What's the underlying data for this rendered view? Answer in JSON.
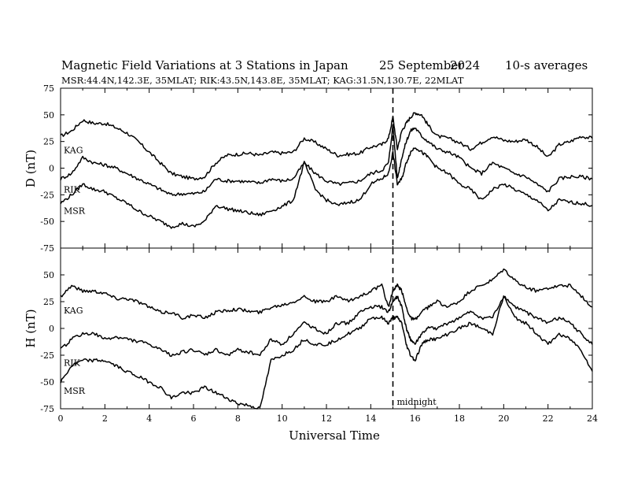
{
  "header": {
    "title": "Magnetic Field Variations at 3 Stations in Japan",
    "date": "25 September",
    "year": "2024",
    "averaging": "10-s averages",
    "stations_line": "MSR:44.4N,142.3E, 35MLAT;  RIK:43.5N,143.8E, 35MLAT;  KAG:31.5N,130.7E, 22MLAT"
  },
  "chart_data": [
    {
      "type": "line",
      "panel": "D",
      "ylabel": "D (nT)",
      "xlabel": "",
      "ylim": [
        -75,
        75
      ],
      "yticks": [
        -75,
        -50,
        -25,
        0,
        25,
        50,
        75
      ],
      "xlim": [
        0,
        24
      ],
      "x": [
        0,
        0.5,
        1,
        1.5,
        2,
        2.5,
        3,
        3.5,
        4,
        4.5,
        5,
        5.5,
        6,
        6.5,
        7,
        7.5,
        8,
        8.5,
        9,
        9.5,
        10,
        10.5,
        11,
        11.5,
        12,
        12.5,
        13,
        13.5,
        14,
        14.5,
        14.8,
        15,
        15.2,
        15.4,
        15.6,
        15.8,
        16,
        16.3,
        16.6,
        17,
        17.5,
        18,
        18.5,
        19,
        19.5,
        20,
        20.5,
        21,
        21.5,
        22,
        22.5,
        23,
        23.5,
        24
      ],
      "series": [
        {
          "name": "KAG",
          "label_y": 17,
          "values": [
            30,
            35,
            45,
            42,
            42,
            38,
            33,
            25,
            15,
            5,
            -5,
            -8,
            -10,
            -8,
            5,
            12,
            13,
            14,
            12,
            15,
            14,
            15,
            28,
            24,
            18,
            12,
            13,
            14,
            20,
            22,
            28,
            48,
            18,
            35,
            42,
            48,
            52,
            50,
            40,
            30,
            28,
            24,
            18,
            24,
            30,
            26,
            25,
            27,
            20,
            10,
            22,
            25,
            30,
            28
          ]
        },
        {
          "name": "RIK",
          "label_y": -20,
          "values": [
            -10,
            -5,
            10,
            5,
            3,
            0,
            -5,
            -10,
            -15,
            -20,
            -25,
            -24,
            -24,
            -22,
            -10,
            -12,
            -12,
            -13,
            -14,
            -10,
            -12,
            -10,
            5,
            -5,
            -12,
            -15,
            -14,
            -12,
            -5,
            -2,
            5,
            40,
            -10,
            10,
            25,
            35,
            38,
            30,
            25,
            18,
            15,
            10,
            0,
            -5,
            5,
            0,
            -5,
            -8,
            -15,
            -22,
            -10,
            -8,
            -8,
            -10
          ]
        },
        {
          "name": "MSR",
          "label_y": -40,
          "values": [
            -33,
            -25,
            -15,
            -20,
            -22,
            -28,
            -33,
            -40,
            -45,
            -50,
            -55,
            -52,
            -55,
            -50,
            -35,
            -38,
            -40,
            -42,
            -44,
            -40,
            -36,
            -30,
            5,
            -20,
            -30,
            -35,
            -32,
            -30,
            -15,
            -10,
            -5,
            15,
            -15,
            -10,
            5,
            15,
            20,
            15,
            10,
            0,
            -5,
            -15,
            -20,
            -30,
            -20,
            -15,
            -20,
            -25,
            -30,
            -40,
            -30,
            -32,
            -33,
            -35
          ]
        }
      ]
    },
    {
      "type": "line",
      "panel": "H",
      "ylabel": "H (nT)",
      "xlabel": "Universal Time",
      "ylim": [
        -75,
        75
      ],
      "yticks": [
        -75,
        -50,
        -25,
        0,
        25,
        50
      ],
      "xlim": [
        0,
        24
      ],
      "xticks": [
        0,
        2,
        4,
        6,
        8,
        10,
        12,
        14,
        16,
        18,
        20,
        22,
        24
      ],
      "x": [
        0,
        0.5,
        1,
        1.5,
        2,
        2.5,
        3,
        3.5,
        4,
        4.5,
        5,
        5.5,
        6,
        6.5,
        7,
        7.5,
        8,
        8.5,
        9,
        9.5,
        10,
        10.5,
        11,
        11.5,
        12,
        12.5,
        13,
        13.5,
        14,
        14.5,
        14.8,
        15,
        15.2,
        15.4,
        15.6,
        15.8,
        16,
        16.3,
        16.6,
        17,
        17.5,
        18,
        18.5,
        19,
        19.5,
        20,
        20.5,
        21,
        21.5,
        22,
        22.5,
        23,
        23.5,
        24
      ],
      "series": [
        {
          "name": "KAG",
          "label_y": 17,
          "values": [
            30,
            40,
            35,
            35,
            33,
            28,
            28,
            25,
            20,
            15,
            15,
            10,
            12,
            10,
            15,
            17,
            18,
            16,
            15,
            20,
            22,
            25,
            30,
            25,
            25,
            30,
            25,
            30,
            35,
            40,
            20,
            35,
            40,
            35,
            20,
            10,
            8,
            15,
            20,
            25,
            20,
            25,
            35,
            40,
            45,
            55,
            45,
            38,
            35,
            38,
            40,
            40,
            30,
            20
          ]
        },
        {
          "name": "RIK",
          "label_y": -32,
          "values": [
            -20,
            -10,
            -5,
            -5,
            -10,
            -8,
            -10,
            -12,
            -15,
            -20,
            -25,
            -22,
            -20,
            -25,
            -20,
            -25,
            -20,
            -22,
            -25,
            -10,
            -15,
            -5,
            5,
            0,
            -5,
            5,
            5,
            15,
            20,
            20,
            15,
            25,
            30,
            20,
            0,
            -10,
            -15,
            -5,
            0,
            0,
            5,
            10,
            15,
            10,
            10,
            30,
            20,
            15,
            10,
            5,
            10,
            5,
            -5,
            -15
          ]
        },
        {
          "name": "MSR",
          "label_y": -58,
          "values": [
            -50,
            -35,
            -30,
            -30,
            -30,
            -35,
            -40,
            -45,
            -50,
            -55,
            -65,
            -60,
            -60,
            -55,
            -60,
            -65,
            -70,
            -72,
            -75,
            -30,
            -25,
            -20,
            -10,
            -15,
            -15,
            -10,
            -5,
            0,
            10,
            10,
            5,
            10,
            10,
            5,
            -15,
            -25,
            -30,
            -15,
            -10,
            -10,
            -5,
            0,
            5,
            0,
            -5,
            30,
            10,
            5,
            -5,
            -15,
            -5,
            -10,
            -20,
            -40
          ]
        }
      ]
    }
  ],
  "annotations": {
    "midnight_label": "midnight",
    "midnight_x": 15
  }
}
